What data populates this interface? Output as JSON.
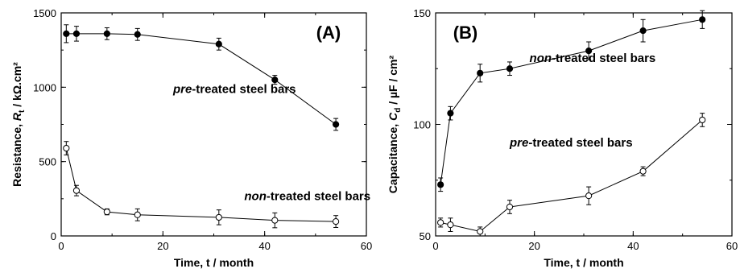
{
  "chart_data": [
    {
      "type": "line",
      "panel_label": "(A)",
      "xlabel": "Time, t / month",
      "ylabel_parts": {
        "main": "Resistance, ",
        "var": "R",
        "sub": "t",
        "unit": " / kΩ.cm²"
      },
      "xlim": [
        0,
        60
      ],
      "ylim": [
        0,
        1500
      ],
      "xticks": [
        0,
        20,
        40,
        60
      ],
      "yticks": [
        0,
        500,
        1000,
        1500
      ],
      "x_minor_step": 10,
      "y_minor_step": 250,
      "series": [
        {
          "marker": "filled-circle",
          "x": [
            1,
            3,
            9,
            15,
            31,
            42,
            54
          ],
          "y": [
            1360,
            1360,
            1360,
            1355,
            1290,
            1050,
            750
          ],
          "err": [
            60,
            50,
            40,
            40,
            40,
            30,
            40
          ]
        },
        {
          "marker": "open-circle",
          "x": [
            1,
            3,
            9,
            15,
            31,
            42,
            54
          ],
          "y": [
            590,
            305,
            162,
            142,
            125,
            105,
            97
          ],
          "err": [
            45,
            35,
            20,
            40,
            50,
            50,
            40
          ]
        }
      ],
      "annotations": [
        {
          "italic": "pre",
          "rest": "-treated steel bars",
          "x": 22,
          "y": 960
        },
        {
          "italic": "non",
          "rest": "-treated steel bars",
          "x": 36,
          "y": 240
        }
      ]
    },
    {
      "type": "line",
      "panel_label": "(B)",
      "xlabel": "Time, t / month",
      "ylabel_parts": {
        "main": "Capacitance, ",
        "var": "C",
        "sub": "d",
        "unit": " / µF / cm²"
      },
      "xlim": [
        0,
        60
      ],
      "ylim": [
        50,
        150
      ],
      "xticks": [
        0,
        20,
        40,
        60
      ],
      "yticks": [
        50,
        100,
        150
      ],
      "x_minor_step": 10,
      "y_minor_step": 25,
      "series": [
        {
          "marker": "filled-circle",
          "x": [
            1,
            3,
            9,
            15,
            31,
            42,
            54
          ],
          "y": [
            73,
            105,
            123,
            125,
            133,
            142,
            147
          ],
          "err": [
            3,
            3,
            4,
            3,
            4,
            5,
            4
          ]
        },
        {
          "marker": "open-circle",
          "x": [
            1,
            3,
            9,
            15,
            31,
            42,
            54
          ],
          "y": [
            56,
            55,
            52,
            63,
            68,
            79,
            102
          ],
          "err": [
            2,
            3,
            2,
            3,
            4,
            2,
            3
          ]
        }
      ],
      "annotations": [
        {
          "italic": "non",
          "rest": "-treated steel bars",
          "x": 19,
          "y": 128
        },
        {
          "italic": "pre",
          "rest": "-treated steel bars",
          "x": 15,
          "y": 90
        }
      ]
    }
  ]
}
